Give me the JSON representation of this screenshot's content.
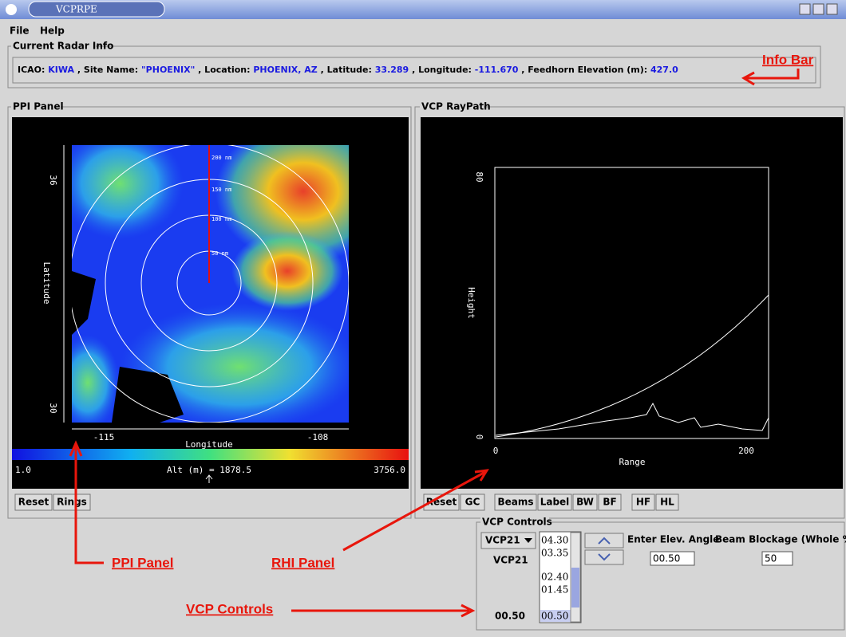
{
  "window": {
    "title": "VCPRPE"
  },
  "menu": [
    "File",
    "Help"
  ],
  "info_bar": {
    "group_title": "Current Radar Info",
    "fields": [
      {
        "label": "ICAO:",
        "value": "KIWA"
      },
      {
        "label": ", Site Name:",
        "value": "\"PHOENIX\""
      },
      {
        "label": ", Location:",
        "value": "PHOENIX, AZ"
      },
      {
        "label": ", Latitude:",
        "value": "33.289"
      },
      {
        "label": ", Longitude:",
        "value": "-111.670"
      },
      {
        "label": ", Feedhorn Elevation (m):",
        "value": "427.0"
      }
    ]
  },
  "ppi_panel": {
    "title": "PPI Panel",
    "y_ticks": [
      "36",
      "30"
    ],
    "y_label": "Latitude",
    "x_ticks": [
      "-115",
      "-108"
    ],
    "x_label": "Longitude",
    "rings": [
      "50 nm",
      "100 nm",
      "150 nm",
      "200 nm"
    ],
    "colorbar": {
      "min": "1.0",
      "label": "Alt (m) = 1878.5",
      "max": "3756.0"
    },
    "buttons": [
      "Reset",
      "Rings"
    ]
  },
  "rhi_panel": {
    "title": "VCP RayPath",
    "y_ticks": [
      "80",
      "0"
    ],
    "y_label": "Height",
    "x_ticks": [
      "0",
      "200"
    ],
    "x_label": "Range",
    "buttons": [
      "Reset",
      "GC",
      "Beams",
      "Label",
      "BW",
      "BF",
      "HF",
      "HL"
    ]
  },
  "vcp_controls": {
    "title": "VCP Controls",
    "dropdown": "VCP21",
    "vcp_label": "VCP21",
    "current_angle": "00.50",
    "angles": [
      "04.30",
      "03.35",
      "02.40",
      "01.45",
      "00.50"
    ],
    "elev_label": "Enter Elev. Angle",
    "blockage_label": "Beam Blockage (Whole %)",
    "elev_input": "00.50",
    "blockage_input": "50"
  },
  "annotations": [
    "Info Bar",
    "PPI Panel",
    "RHI Panel",
    "VCP Controls"
  ]
}
